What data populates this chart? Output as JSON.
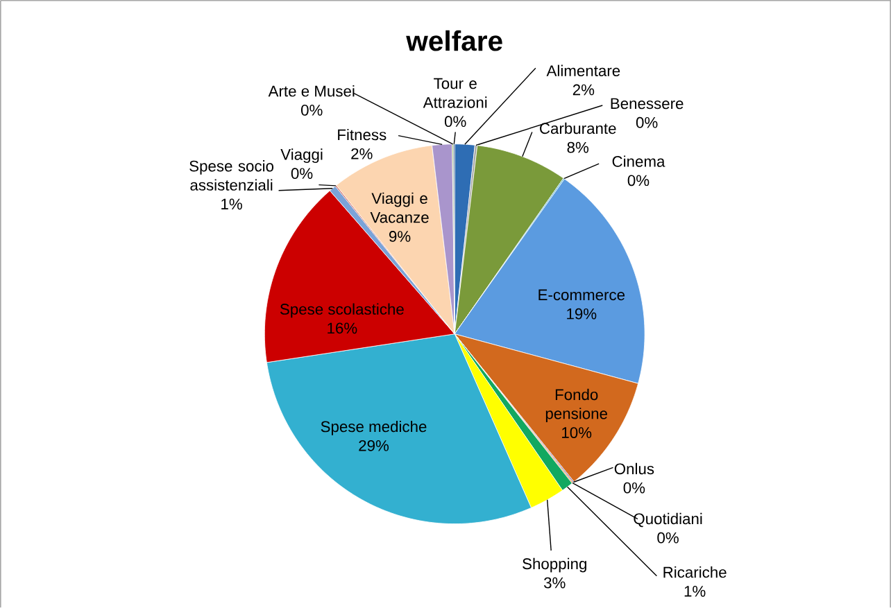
{
  "chart_data": {
    "type": "pie",
    "title": "welfare",
    "categories": [
      "Alimentare",
      "Benessere",
      "Carburante",
      "Cinema",
      "E-commerce",
      "Fondo pensione",
      "Onlus",
      "Quotidiani",
      "Ricariche",
      "Shopping",
      "Spese mediche",
      "Spese scolastiche",
      "Spese socio assistenziali",
      "Viaggi",
      "Viaggi e Vacanze",
      "Fitness",
      "Arte e Musei",
      "Tour e Attrazioni"
    ],
    "values": [
      1.7,
      0.2,
      7.8,
      0.1,
      19.4,
      10.0,
      0.1,
      0.1,
      1.0,
      3.0,
      29.2,
      16.0,
      0.6,
      0.1,
      8.8,
      1.7,
      0.1,
      0.1
    ],
    "value_labels": [
      "2%",
      "0%",
      "8%",
      "0%",
      "19%",
      "10%",
      "0%",
      "0%",
      "1%",
      "3%",
      "29%",
      "16%",
      "1%",
      "0%",
      "9%",
      "2%",
      "0%",
      "0%"
    ],
    "colors": [
      "#2e6db4",
      "#a5a5a5",
      "#7a9a3a",
      "#4bacc6",
      "#5b9be0",
      "#d2691e",
      "#8064a2",
      "#f79646",
      "#12a860",
      "#ffff00",
      "#33b0d0",
      "#cc0000",
      "#7ba3d8",
      "#c0504d",
      "#fcd5b0",
      "#a995cc",
      "#9bbb59",
      "#1f497d"
    ]
  }
}
